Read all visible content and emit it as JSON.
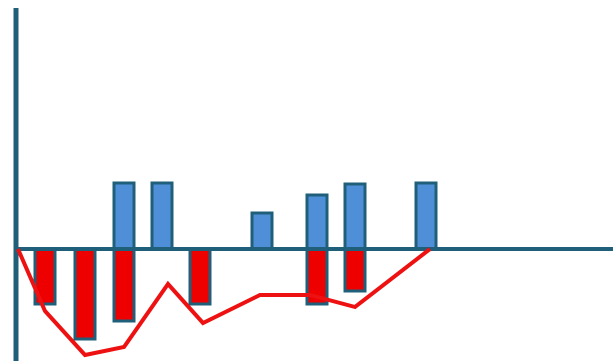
{
  "chart_data": {
    "type": "bar",
    "title": "",
    "xlabel": "",
    "ylabel": "",
    "grid": false,
    "legend": "none",
    "ylim": [
      -120,
      240
    ],
    "xlim": [
      0,
      613
    ],
    "bars": [
      {
        "x": 45,
        "value": -55
      },
      {
        "x": 85,
        "value": -90
      },
      {
        "x": 124,
        "value": 66
      },
      {
        "x": 124,
        "value": -72
      },
      {
        "x": 162,
        "value": 66
      },
      {
        "x": 200,
        "value": -55
      },
      {
        "x": 262,
        "value": 36
      },
      {
        "x": 317,
        "value": 54
      },
      {
        "x": 317,
        "value": -55
      },
      {
        "x": 355,
        "value": 65
      },
      {
        "x": 355,
        "value": -42
      },
      {
        "x": 426,
        "value": 66
      }
    ],
    "line": {
      "x": [
        18,
        45,
        85,
        124,
        168,
        203,
        260,
        310,
        355,
        430
      ],
      "y": [
        0,
        -62,
        -106,
        -98,
        -35,
        -74,
        -46,
        -46,
        -58,
        0
      ]
    },
    "colors": {
      "positive_fill": "#4f8fd8",
      "negative_fill": "#ee0000",
      "bar_stroke": "#1f5f7a",
      "axis": "#1f5f7a",
      "line": "#ee1111"
    }
  }
}
